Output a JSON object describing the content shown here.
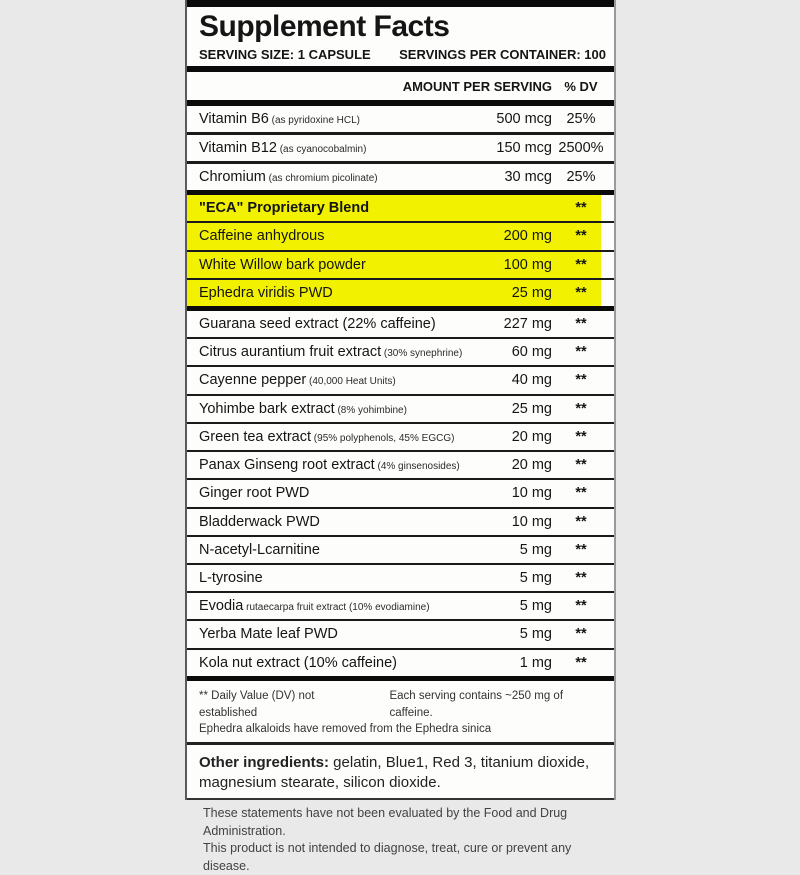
{
  "panel": {
    "title": "Supplement Facts",
    "serving_size": "SERVING SIZE: 1 CAPSULE",
    "servings_per_container": "SERVINGS PER CONTAINER: 100",
    "col_amount_header": "AMOUNT PER SERVING",
    "col_dv_header": "% DV",
    "highlight_color": "#f2f200",
    "rows": [
      {
        "name": "Vitamin B6",
        "note": "(as pyridoxine HCL)",
        "amount": "500 mcg",
        "dv": "25%",
        "dv_pct": true,
        "sep": "medium"
      },
      {
        "name": "Vitamin B12",
        "note": "(as cyanocobalmin)",
        "amount": "150 mcg",
        "dv": "2500%",
        "dv_pct": true,
        "sep": "medium"
      },
      {
        "name": "Chromium",
        "note": "(as chromium picolinate)",
        "amount": "30 mcg",
        "dv": "25%",
        "dv_pct": true,
        "sep": "thick"
      },
      {
        "name": "\"ECA\" Proprietary Blend",
        "note": "",
        "amount": "",
        "dv": "**",
        "highlight": true,
        "bold": true,
        "sep": "thin"
      },
      {
        "name": "Caffeine anhydrous",
        "note": "",
        "amount": "200 mg",
        "dv": "**",
        "highlight": true,
        "sep": "thin"
      },
      {
        "name": "White Willow bark powder",
        "note": "",
        "amount": "100 mg",
        "dv": "**",
        "highlight": true,
        "sep": "thin"
      },
      {
        "name": "Ephedra viridis PWD",
        "note": "",
        "amount": "25 mg",
        "dv": "**",
        "highlight": true,
        "sep": "thick"
      },
      {
        "name": "Guarana seed extract (22% caffeine)",
        "note": "",
        "amount": "227 mg",
        "dv": "**",
        "sep": "thin"
      },
      {
        "name": "Citrus aurantium fruit extract",
        "note": "(30% synephrine)",
        "amount": "60 mg",
        "dv": "**",
        "sep": "thin"
      },
      {
        "name": "Cayenne pepper",
        "note": "(40,000 Heat Units)",
        "amount": "40 mg",
        "dv": "**",
        "sep": "thin"
      },
      {
        "name": "Yohimbe bark extract",
        "note": "(8% yohimbine)",
        "amount": "25 mg",
        "dv": "**",
        "sep": "thin"
      },
      {
        "name": "Green tea extract",
        "note": "(95% polyphenols, 45% EGCG)",
        "amount": "20 mg",
        "dv": "**",
        "sep": "thin"
      },
      {
        "name": "Panax Ginseng root extract",
        "note": "(4% ginsenosides)",
        "amount": "20 mg",
        "dv": "**",
        "sep": "thin"
      },
      {
        "name": "Ginger root PWD",
        "note": "",
        "amount": "10 mg",
        "dv": "**",
        "sep": "thin"
      },
      {
        "name": "Bladderwack PWD",
        "note": "",
        "amount": "10 mg",
        "dv": "**",
        "sep": "thin"
      },
      {
        "name": "N-acetyl-Lcarnitine",
        "note": "",
        "amount": "5 mg",
        "dv": "**",
        "sep": "thin"
      },
      {
        "name": "L-tyrosine",
        "note": "",
        "amount": "5 mg",
        "dv": "**",
        "sep": "thin"
      },
      {
        "name": "Evodia",
        "note": "rutaecarpa fruit extract (10% evodiamine)",
        "amount": "5 mg",
        "dv": "**",
        "sep": "thin"
      },
      {
        "name": "Yerba Mate leaf PWD",
        "note": "",
        "amount": "5 mg",
        "dv": "**",
        "sep": "thin"
      },
      {
        "name": "Kola nut extract (10% caffeine)",
        "note": "",
        "amount": "1 mg",
        "dv": "**",
        "sep": "thick"
      }
    ],
    "footnote_left": "** Daily Value (DV) not established",
    "footnote_right": "Each serving contains ~250 mg of caffeine.",
    "footnote_line2": "Ephedra alkaloids have removed from the Ephedra sinica",
    "other_ingredients_label": "Other ingredients:",
    "other_ingredients_text": " gelatin, Blue1, Red 3, titanium dioxide, magnesium stearate, silicon dioxide.",
    "disclaimer_line1": "These statements have not been evaluated by the Food and Drug Administration.",
    "disclaimer_line2": "This product is not intended to diagnose, treat, cure or prevent any disease."
  }
}
